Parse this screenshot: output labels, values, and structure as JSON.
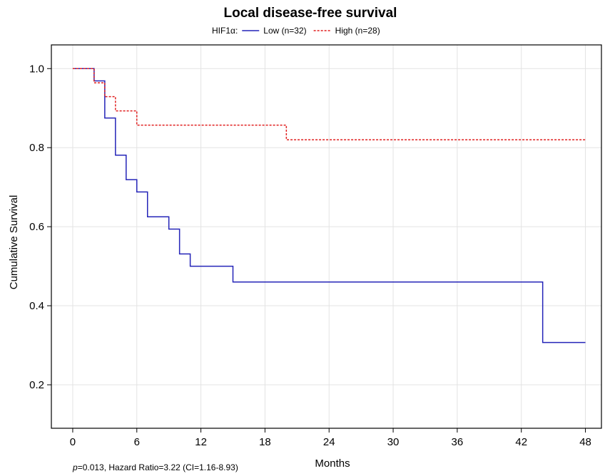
{
  "chart_data": {
    "type": "line",
    "step": true,
    "title": "Local disease-free survival",
    "xlabel": "Months",
    "ylabel": "Cumulative Survival",
    "xlim": [
      -2,
      49.5
    ],
    "ylim": [
      0.09,
      1.06
    ],
    "xticks": [
      0,
      6,
      12,
      18,
      24,
      30,
      36,
      42,
      48
    ],
    "yticks": [
      0.2,
      0.4,
      0.6,
      0.8,
      1.0
    ],
    "ytick_labels": [
      "0.2",
      "0.4",
      "0.6",
      "0.8",
      "1.0"
    ],
    "grid": true,
    "legend": {
      "placement": "top-center",
      "prefix": "HIF1α:"
    },
    "series": [
      {
        "name": "Low (n=32)",
        "color": "#2424b8",
        "dash": "solid",
        "x": [
          0,
          2,
          3,
          4,
          5,
          6,
          7,
          9,
          10,
          11,
          15,
          44,
          48
        ],
        "y": [
          1.0,
          0.969,
          0.875,
          0.781,
          0.719,
          0.688,
          0.625,
          0.594,
          0.531,
          0.5,
          0.46,
          0.307,
          0.307
        ]
      },
      {
        "name": "High (n=28)",
        "color": "#e01e1e",
        "dash": "dotted",
        "x": [
          0,
          2,
          3,
          4,
          6,
          20,
          48
        ],
        "y": [
          1.0,
          0.964,
          0.929,
          0.893,
          0.857,
          0.82,
          0.82
        ]
      }
    ],
    "annotation": {
      "p_prefix": "p",
      "text": "=0.013, Hazard Ratio=3.22 (CI=1.16-8.93)"
    }
  }
}
